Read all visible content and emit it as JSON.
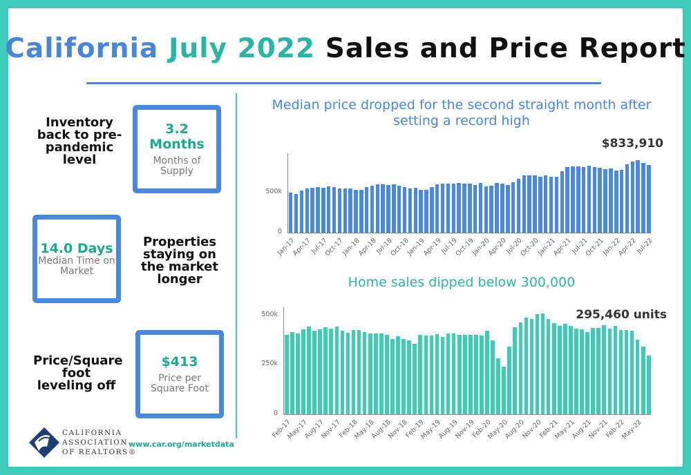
{
  "title": {
    "part1": "California",
    "part2": "July 2022",
    "part3": "Sales and Price Report"
  },
  "colors": {
    "blue": "#4a88dd",
    "teal": "#3ecbba",
    "teal_text": "#1aa88f"
  },
  "stats": [
    {
      "caption": "Inventory back to pre-pandemic level",
      "value": "3.2 Months",
      "label": "Months of Supply"
    },
    {
      "caption": "Properties staying on the market longer",
      "value": "14.0 Days",
      "label": "Median Time on Market"
    },
    {
      "caption": "Price/Square foot leveling off",
      "value": "$413",
      "label": "Price per Square Foot"
    }
  ],
  "footer": {
    "logo_text": [
      "CALIFORNIA",
      "ASSOCIATION",
      "OF REALTORS®"
    ],
    "url": "www.car.org/marketdata"
  },
  "chart_data": [
    {
      "type": "bar",
      "title": "Median price dropped for the second straight month after setting a record high",
      "annotation": "$833,910",
      "color": "#4a88dd",
      "ylim": [
        0,
        900000
      ],
      "yticks": [
        "0",
        "500k"
      ],
      "ytick_values": [
        0,
        500000
      ],
      "grid": false,
      "tick_labels": [
        "Jan-17",
        "Apr-17",
        "Jul-17",
        "Oct-17",
        "Jan-18",
        "Apr-18",
        "Jul-18",
        "Oct-18",
        "Jan-19",
        "Apr-19",
        "Jul-19",
        "Oct-19",
        "Jan-20",
        "Apr-20",
        "Jul-20",
        "Oct-20",
        "Jan-21",
        "Apr-21",
        "Jul-21",
        "Oct-21",
        "Jan-22",
        "Apr-22",
        "Jul-22"
      ],
      "start": "Jan-17",
      "end": "Jul-22",
      "values": [
        497000,
        480000,
        525000,
        545000,
        557000,
        566000,
        557000,
        570000,
        565000,
        545000,
        551000,
        551000,
        526000,
        526000,
        565000,
        585000,
        602000,
        602000,
        592000,
        597000,
        577000,
        568000,
        551000,
        555000,
        530000,
        530000,
        565000,
        602000,
        609000,
        610000,
        607000,
        615000,
        607000,
        609000,
        592000,
        615000,
        569000,
        580000,
        613000,
        607000,
        590000,
        626000,
        666000,
        706000,
        712000,
        712000,
        694000,
        712000,
        695000,
        695000,
        758000,
        813000,
        818000,
        819000,
        811000,
        828000,
        808000,
        803000,
        786000,
        797000,
        773000,
        777000,
        849000,
        884000,
        900000,
        863000,
        833910
      ]
    },
    {
      "type": "bar",
      "title": "Home sales dipped below 300,000",
      "annotation": "295,460 units",
      "color": "#3ecbba",
      "ylim": [
        0,
        500000
      ],
      "yticks": [
        "0",
        "250k",
        "500k"
      ],
      "ytick_values": [
        0,
        250000,
        500000
      ],
      "grid": false,
      "tick_labels": [
        "Feb-17",
        "May-17",
        "Aug-17",
        "Nov-17",
        "Feb-18",
        "May-18",
        "Aug-18",
        "Nov-18",
        "Feb-19",
        "May-19",
        "Aug-19",
        "Nov-19",
        "Feb-20",
        "May-20",
        "Aug-20",
        "Nov-20",
        "Feb-21",
        "May-21",
        "Aug-21",
        "Nov-21",
        "Feb-22",
        "May-22"
      ],
      "start": "Feb-17",
      "end": "Jul-22",
      "values": [
        400000,
        416000,
        407000,
        428000,
        441000,
        420000,
        428000,
        438000,
        431000,
        442000,
        420000,
        410000,
        424000,
        424000,
        416000,
        409000,
        409000,
        407000,
        400000,
        381000,
        395000,
        381000,
        372000,
        357000,
        400000,
        396000,
        396000,
        405000,
        389000,
        409000,
        406000,
        402000,
        402000,
        402000,
        399000,
        396000,
        421000,
        372000,
        282000,
        239000,
        342000,
        438000,
        463000,
        488000,
        481000,
        506000,
        509000,
        481000,
        459000,
        445000,
        455000,
        445000,
        433000,
        428000,
        415000,
        437000,
        434000,
        451000,
        432000,
        445000,
        425000,
        425000,
        421000,
        378000,
        342000,
        295460
      ]
    }
  ]
}
